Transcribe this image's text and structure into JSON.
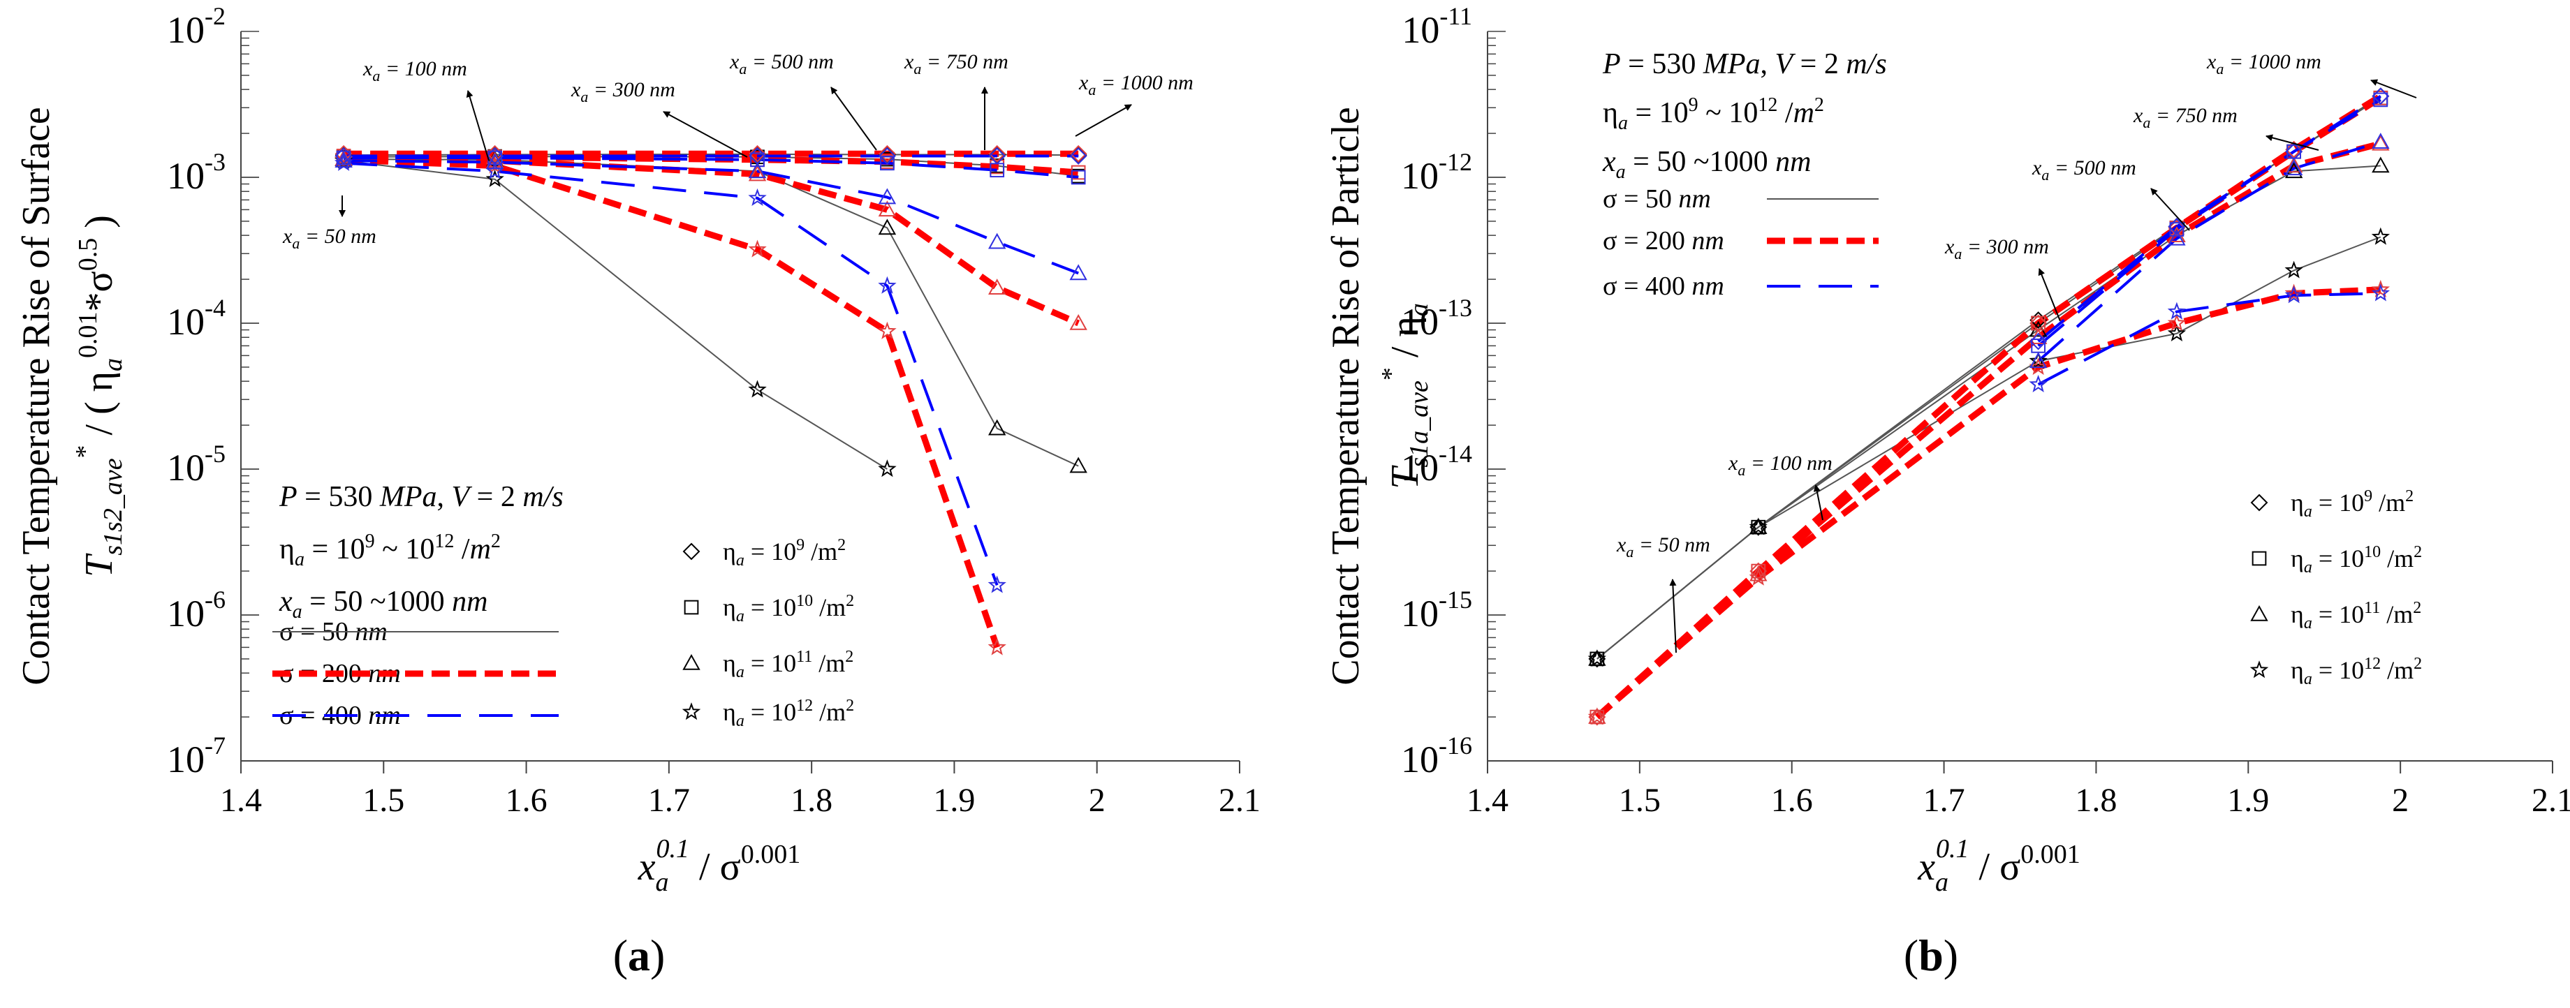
{
  "chart_data": [
    {
      "type": "line",
      "panel_label": "a",
      "ylabel_line1": "Contact Temperature Rise of Surface",
      "ylabel_var": "T",
      "ylabel_sub": "s1s2_ave",
      "ylabel_star": "*",
      "ylabel_div": "/ ( η",
      "ylabel_div_sub": "a",
      "ylabel_exp1": "0.01",
      "ylabel_mul": "*σ",
      "ylabel_exp2": "0.5",
      "ylabel_close": ")",
      "xlabel": "x_a^0.1 / σ^0.001",
      "yscale": "log",
      "xlim": [
        1.4,
        2.1
      ],
      "ylim_exp": [
        -7,
        -2
      ],
      "xticks": [
        "1.4",
        "1.5",
        "1.6",
        "1.7",
        "1.8",
        "1.9",
        "2",
        "2.1"
      ],
      "yticks_exp": [
        "-7",
        "-6",
        "-5",
        "-4",
        "-3",
        "-2"
      ],
      "ytick_base": "10",
      "params": [
        "P = 530 MPa, V = 2 m/s",
        "η_a = 10^9 ~ 10^12 /m^2",
        "x_a = 50 ~1000 nm"
      ],
      "annotations": [
        {
          "text": "x_a = 50 nm",
          "label": "x",
          "sub": "a",
          "rest": " = 50 nm"
        },
        {
          "text": "x_a = 100 nm",
          "label": "x",
          "sub": "a",
          "rest": " = 100 nm"
        },
        {
          "text": "x_a = 300 nm",
          "label": "x",
          "sub": "a",
          "rest": " = 300 nm"
        },
        {
          "text": "x_a = 500 nm",
          "label": "x",
          "sub": "a",
          "rest": " = 500 nm"
        },
        {
          "text": "x_a = 750 nm",
          "label": "x",
          "sub": "a",
          "rest": " = 750 nm"
        },
        {
          "text": "x_a = 1000 nm",
          "label": "x",
          "sub": "a",
          "rest": " = 1000 nm"
        }
      ],
      "x": [
        1.472,
        1.578,
        1.762,
        1.853,
        1.93,
        1.987
      ],
      "series": [
        {
          "name": "σ = 50 nm, η_a = 10^9",
          "sigma": "50",
          "eta": "9",
          "values": [
            0.00142,
            0.00143,
            0.00144,
            0.00143,
            0.00143,
            0.00142
          ]
        },
        {
          "name": "σ = 50 nm, η_a = 10^10",
          "sigma": "50",
          "eta": "10",
          "values": [
            0.00138,
            0.00139,
            0.00138,
            0.00133,
            0.0012,
            0.00102
          ]
        },
        {
          "name": "σ = 50 nm, η_a = 10^11",
          "sigma": "50",
          "eta": "11",
          "values": [
            0.00133,
            0.00132,
            0.0011,
            0.00045,
            1.9e-05,
            1.05e-05
          ]
        },
        {
          "name": "σ = 50 nm, η_a = 10^12",
          "sigma": "50",
          "eta": "12",
          "values": [
            0.0013,
            0.00097,
            3.5e-05,
            1e-05,
            null,
            null
          ]
        },
        {
          "name": "σ = 200 nm, η_a = 10^9",
          "sigma": "200",
          "eta": "9",
          "values": [
            0.00145,
            0.00145,
            0.00145,
            0.00145,
            0.00145,
            0.00145
          ]
        },
        {
          "name": "σ = 200 nm, η_a = 10^10",
          "sigma": "200",
          "eta": "10",
          "values": [
            0.0014,
            0.00138,
            0.00132,
            0.00128,
            0.00118,
            0.00108
          ]
        },
        {
          "name": "σ = 200 nm, η_a = 10^11",
          "sigma": "200",
          "eta": "11",
          "values": [
            0.00134,
            0.0013,
            0.00105,
            0.0006,
            0.000175,
            0.0001
          ]
        },
        {
          "name": "σ = 200 nm, η_a = 10^12",
          "sigma": "200",
          "eta": "12",
          "values": [
            0.00132,
            0.0012,
            0.00032,
            8.8e-05,
            6e-07,
            null
          ]
        },
        {
          "name": "σ = 400 nm, η_a = 10^9",
          "sigma": "400",
          "eta": "9",
          "values": [
            0.0014,
            0.0014,
            0.0014,
            0.0014,
            0.0014,
            0.0014
          ]
        },
        {
          "name": "σ = 400 nm, η_a = 10^10",
          "sigma": "400",
          "eta": "10",
          "values": [
            0.00136,
            0.00136,
            0.00132,
            0.00125,
            0.00112,
            0.001
          ]
        },
        {
          "name": "σ = 400 nm, η_a = 10^11",
          "sigma": "400",
          "eta": "11",
          "values": [
            0.0013,
            0.00127,
            0.0011,
            0.00073,
            0.00036,
            0.00022
          ]
        },
        {
          "name": "σ = 400 nm, η_a = 10^12",
          "sigma": "400",
          "eta": "12",
          "values": [
            0.00125,
            0.0011,
            0.00072,
            0.00018,
            1.6e-06,
            null
          ]
        }
      ]
    },
    {
      "type": "line",
      "panel_label": "b",
      "ylabel_line1": "Contact Temperature Rise of Particle",
      "ylabel_var": "T",
      "ylabel_sub": "s1a_ave",
      "ylabel_star": "*",
      "ylabel_div": "/  η",
      "ylabel_div_sub": "a",
      "xlabel": "x_a^0.1 / σ^0.001",
      "yscale": "log",
      "xlim": [
        1.4,
        2.1
      ],
      "ylim_exp": [
        -16,
        -11
      ],
      "xticks": [
        "1.4",
        "1.5",
        "1.6",
        "1.7",
        "1.8",
        "1.9",
        "2",
        "2.1"
      ],
      "yticks_exp": [
        "-16",
        "-15",
        "-14",
        "-13",
        "-12",
        "-11"
      ],
      "ytick_base": "10",
      "params": [
        "P = 530 MPa, V = 2 m/s",
        "η_a = 10^9 ~ 10^12 /m^2",
        "x_a = 50 ~1000 nm"
      ],
      "annotations": [
        {
          "text": "x_a = 50 nm",
          "label": "x",
          "sub": "a",
          "rest": " = 50 nm"
        },
        {
          "text": "x_a = 100 nm",
          "label": "x",
          "sub": "a",
          "rest": " = 100 nm"
        },
        {
          "text": "x_a = 300 nm",
          "label": "x",
          "sub": "a",
          "rest": " = 300 nm"
        },
        {
          "text": "x_a = 500 nm",
          "label": "x",
          "sub": "a",
          "rest": " = 500 nm"
        },
        {
          "text": "x_a = 750 nm",
          "label": "x",
          "sub": "a",
          "rest": " = 750 nm"
        },
        {
          "text": "x_a = 1000 nm",
          "label": "x",
          "sub": "a",
          "rest": " = 1000 nm"
        }
      ],
      "x": [
        1.472,
        1.578,
        1.762,
        1.853,
        1.93,
        1.987
      ],
      "series": [
        {
          "name": "σ = 50 nm, η_a = 10^9",
          "sigma": "50",
          "eta": "9",
          "values": [
            5e-16,
            4e-15,
            1.05e-13,
            4.6e-13,
            1.5e-12,
            3.6e-12
          ]
        },
        {
          "name": "σ = 50 nm, η_a = 10^10",
          "sigma": "50",
          "eta": "10",
          "values": [
            5e-16,
            4e-15,
            1e-13,
            4.5e-13,
            1.5e-12,
            3.5e-12
          ]
        },
        {
          "name": "σ = 50 nm, η_a = 10^11",
          "sigma": "50",
          "eta": "11",
          "values": [
            5e-16,
            4e-15,
            9e-14,
            4e-13,
            1.1e-12,
            1.2e-12
          ]
        },
        {
          "name": "σ = 50 nm, η_a = 10^12",
          "sigma": "50",
          "eta": "12",
          "values": [
            5e-16,
            4e-15,
            5.5e-14,
            8.5e-14,
            2.3e-13,
            3.9e-13
          ]
        },
        {
          "name": "σ = 200 nm, η_a = 10^9",
          "sigma": "200",
          "eta": "9",
          "values": [
            2e-16,
            2e-15,
            1e-13,
            4.5e-13,
            1.55e-12,
            3.6e-12
          ]
        },
        {
          "name": "σ = 200 nm, η_a = 10^10",
          "sigma": "200",
          "eta": "10",
          "values": [
            2e-16,
            2e-15,
            1e-13,
            4.5e-13,
            1.5e-12,
            3.5e-12
          ]
        },
        {
          "name": "σ = 200 nm, η_a = 10^11",
          "sigma": "200",
          "eta": "11",
          "values": [
            2e-16,
            1.9e-15,
            8e-14,
            4e-13,
            1.2e-12,
            1.7e-12
          ]
        },
        {
          "name": "σ = 200 nm, η_a = 10^12",
          "sigma": "200",
          "eta": "12",
          "values": [
            2e-16,
            1.8e-15,
            5e-14,
            1e-13,
            1.6e-13,
            1.7e-13
          ]
        },
        {
          "name": "σ = 400 nm, η_a = 10^9",
          "sigma": "400",
          "eta": "9",
          "values": [
            null,
            null,
            7.5e-14,
            4.6e-13,
            1.5e-12,
            3.6e-12
          ]
        },
        {
          "name": "σ = 400 nm, η_a = 10^10",
          "sigma": "400",
          "eta": "10",
          "values": [
            null,
            null,
            7e-14,
            4.4e-13,
            1.5e-12,
            3.4e-12
          ]
        },
        {
          "name": "σ = 400 nm, η_a = 10^11",
          "sigma": "400",
          "eta": "11",
          "values": [
            null,
            null,
            5.5e-14,
            3.8e-13,
            1.15e-12,
            1.75e-12
          ]
        },
        {
          "name": "σ = 400 nm, η_a = 10^12",
          "sigma": "400",
          "eta": "12",
          "values": [
            null,
            null,
            3.8e-14,
            1.2e-13,
            1.55e-13,
            1.6e-13
          ]
        }
      ]
    }
  ],
  "legend": {
    "lines": [
      {
        "sigma": "50",
        "label": "σ = 50 ",
        "unit": "nm"
      },
      {
        "sigma": "200",
        "label": "σ = 200 ",
        "unit": "nm"
      },
      {
        "sigma": "400",
        "label": "σ = 400 ",
        "unit": "nm"
      }
    ],
    "markers": [
      {
        "eta": "9",
        "label": "η",
        "sub": "a",
        "mid": " = 10",
        "exp": "9",
        "unit": "/m",
        "unit_exp": "2"
      },
      {
        "eta": "10",
        "label": "η",
        "sub": "a",
        "mid": " = 10",
        "exp": "10",
        "unit": "/m",
        "unit_exp": "2"
      },
      {
        "eta": "11",
        "label": "η",
        "sub": "a",
        "mid": " = 10",
        "exp": "11",
        "unit": "/m",
        "unit_exp": "2"
      },
      {
        "eta": "12",
        "label": "η",
        "sub": "a",
        "mid": " = 10",
        "exp": "12",
        "unit": "/m",
        "unit_exp": "2"
      }
    ]
  },
  "colors": {
    "sigma50": "#555555",
    "sigma200": "#ff0000",
    "sigma400": "#0000ff",
    "marker_red": "#e04040",
    "marker_blue": "#3030e0",
    "black": "#000000"
  }
}
